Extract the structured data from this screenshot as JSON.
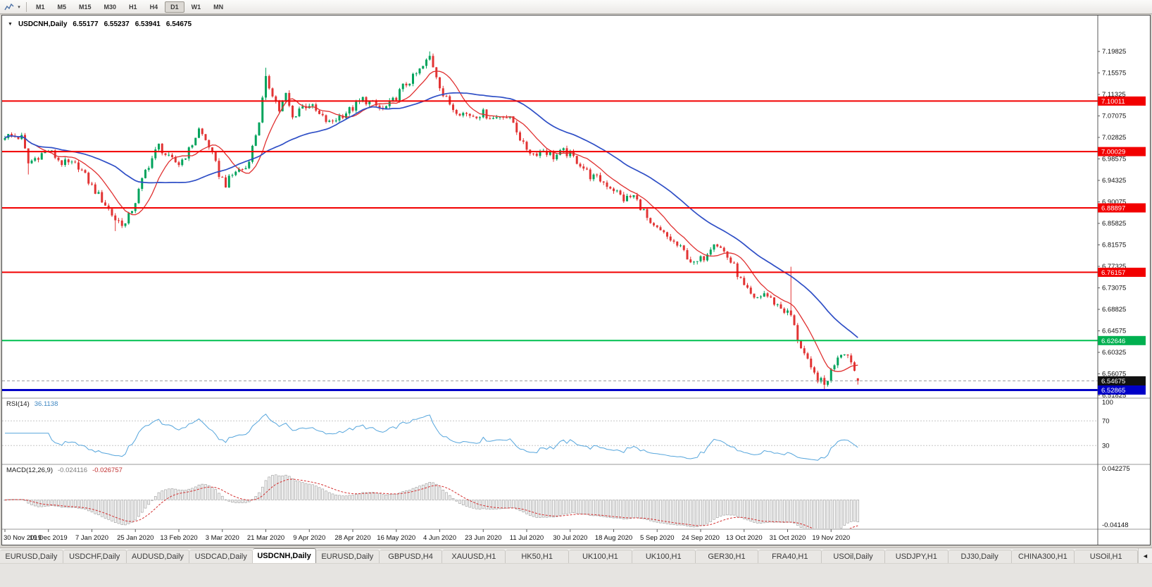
{
  "icons": {
    "collapse_triangle": "▼",
    "dropdown_caret": "▾",
    "tab_scroll_left": "◄"
  },
  "toolbar": {
    "timeframes": [
      {
        "label": "M1"
      },
      {
        "label": "M5"
      },
      {
        "label": "M15"
      },
      {
        "label": "M30"
      },
      {
        "label": "H1"
      },
      {
        "label": "H4"
      },
      {
        "label": "D1",
        "active": true
      },
      {
        "label": "W1"
      },
      {
        "label": "MN"
      }
    ]
  },
  "chart_header": {
    "symbol": "USDCNH,Daily",
    "open": "6.55177",
    "high": "6.55237",
    "low": "6.53941",
    "close": "6.54675"
  },
  "price_axis": {
    "labels": [
      "7.19825",
      "7.15575",
      "7.11325",
      "7.07075",
      "7.02825",
      "6.98575",
      "6.94325",
      "6.90075",
      "6.85825",
      "6.81575",
      "6.77325",
      "6.73075",
      "6.68825",
      "6.64575",
      "6.60325",
      "6.56075",
      "6.51825"
    ],
    "badges": [
      {
        "name": "resistance-1",
        "value": "7.10011",
        "price": 7.10011,
        "bg": "#f20000",
        "fg": "#ffffff"
      },
      {
        "name": "resistance-2",
        "value": "7.00029",
        "price": 7.00029,
        "bg": "#f20000",
        "fg": "#ffffff"
      },
      {
        "name": "resistance-3",
        "value": "6.88897",
        "price": 6.88897,
        "bg": "#f20000",
        "fg": "#ffffff"
      },
      {
        "name": "resistance-4",
        "value": "6.76157",
        "price": 6.76157,
        "bg": "#f20000",
        "fg": "#ffffff"
      },
      {
        "name": "support-green",
        "value": "6.62646",
        "price": 6.62646,
        "bg": "#00b050",
        "fg": "#ffffff"
      },
      {
        "name": "current-price",
        "value": "6.54675",
        "price": 6.54675,
        "bg": "#111111",
        "fg": "#ffffff"
      },
      {
        "name": "support-blue",
        "value": "6.52865",
        "price": 6.52865,
        "bg": "#0000c8",
        "fg": "#ffffff"
      }
    ]
  },
  "hlines": [
    {
      "price": 7.10011,
      "color": "#f20000",
      "width": 2
    },
    {
      "price": 7.00029,
      "color": "#f20000",
      "width": 2
    },
    {
      "price": 6.88897,
      "color": "#f20000",
      "width": 2
    },
    {
      "price": 6.76157,
      "color": "#f20000",
      "width": 2
    },
    {
      "price": 6.62646,
      "color": "#00c050",
      "width": 2
    },
    {
      "price": 6.52865,
      "color": "#0000c8",
      "width": 3
    }
  ],
  "current_price_line": {
    "price": 6.54675,
    "color": "#9a9aa0"
  },
  "time_axis": [
    "30 Nov 2019",
    "19 Dec 2019",
    "7 Jan 2020",
    "25 Jan 2020",
    "13 Feb 2020",
    "3 Mar 2020",
    "21 Mar 2020",
    "9 Apr 2020",
    "28 Apr 2020",
    "16 May 2020",
    "4 Jun 2020",
    "23 Jun 2020",
    "11 Jul 2020",
    "30 Jul 2020",
    "18 Aug 2020",
    "5 Sep 2020",
    "24 Sep 2020",
    "13 Oct 2020",
    "31 Oct 2020",
    "19 Nov 2020"
  ],
  "rsi_panel": {
    "label": "RSI(14)",
    "value": "36.1138",
    "levels": [
      "100",
      "70",
      "30"
    ],
    "line_color": "#55a5dc"
  },
  "macd_panel": {
    "label": "MACD(12,26,9)",
    "value_main": "-0.024116",
    "value_signal": "-0.026757",
    "axis_top": "0.042275",
    "axis_bottom": "-0.04148",
    "hist_fill": "#f2f2f2",
    "hist_stroke": "#9a9a9a",
    "signal_color": "#d43030"
  },
  "chart_data": {
    "type": "candlestick",
    "symbol": "USDCNH",
    "timeframe": "Daily",
    "count": 256,
    "price_range_visible": [
      6.51825,
      7.19825
    ],
    "last_candle": {
      "open": 6.55177,
      "high": 6.55237,
      "low": 6.53941,
      "close": 6.54675
    },
    "anchors_close": [
      [
        0,
        7.032
      ],
      [
        5,
        7.028
      ],
      [
        7,
        6.977
      ],
      [
        10,
        6.992
      ],
      [
        13,
        7.003
      ],
      [
        17,
        6.978
      ],
      [
        22,
        6.972
      ],
      [
        26,
        6.931
      ],
      [
        30,
        6.896
      ],
      [
        33,
        6.866
      ],
      [
        36,
        6.856
      ],
      [
        39,
        6.902
      ],
      [
        42,
        6.962
      ],
      [
        46,
        7.012
      ],
      [
        49,
        6.986
      ],
      [
        52,
        6.976
      ],
      [
        55,
        7.002
      ],
      [
        58,
        7.044
      ],
      [
        61,
        7.012
      ],
      [
        64,
        6.956
      ],
      [
        66,
        6.936
      ],
      [
        69,
        6.962
      ],
      [
        72,
        6.968
      ],
      [
        74,
        7.008
      ],
      [
        76,
        7.062
      ],
      [
        78,
        7.142
      ],
      [
        80,
        7.116
      ],
      [
        82,
        7.082
      ],
      [
        84,
        7.112
      ],
      [
        86,
        7.066
      ],
      [
        88,
        7.086
      ],
      [
        91,
        7.094
      ],
      [
        94,
        7.072
      ],
      [
        97,
        7.056
      ],
      [
        100,
        7.07
      ],
      [
        104,
        7.086
      ],
      [
        107,
        7.104
      ],
      [
        110,
        7.094
      ],
      [
        113,
        7.082
      ],
      [
        116,
        7.1
      ],
      [
        119,
        7.128
      ],
      [
        122,
        7.146
      ],
      [
        125,
        7.168
      ],
      [
        127,
        7.188
      ],
      [
        129,
        7.152
      ],
      [
        131,
        7.112
      ],
      [
        134,
        7.086
      ],
      [
        137,
        7.076
      ],
      [
        140,
        7.072
      ],
      [
        143,
        7.076
      ],
      [
        146,
        7.066
      ],
      [
        149,
        7.074
      ],
      [
        152,
        7.058
      ],
      [
        155,
        7.012
      ],
      [
        158,
        6.996
      ],
      [
        161,
        7.004
      ],
      [
        164,
        6.99
      ],
      [
        167,
        7.0
      ],
      [
        169,
        6.994
      ],
      [
        172,
        6.976
      ],
      [
        175,
        6.952
      ],
      [
        178,
        6.944
      ],
      [
        182,
        6.926
      ],
      [
        185,
        6.906
      ],
      [
        188,
        6.912
      ],
      [
        191,
        6.882
      ],
      [
        193,
        6.852
      ],
      [
        195,
        6.846
      ],
      [
        199,
        6.826
      ],
      [
        203,
        6.802
      ],
      [
        206,
        6.776
      ],
      [
        209,
        6.792
      ],
      [
        212,
        6.824
      ],
      [
        215,
        6.802
      ],
      [
        218,
        6.772
      ],
      [
        221,
        6.732
      ],
      [
        224,
        6.706
      ],
      [
        227,
        6.72
      ],
      [
        230,
        6.702
      ],
      [
        233,
        6.686
      ],
      [
        235,
        6.676
      ],
      [
        237,
        6.63
      ],
      [
        239,
        6.6
      ],
      [
        241,
        6.567
      ],
      [
        243,
        6.552
      ],
      [
        245,
        6.538
      ],
      [
        247,
        6.566
      ],
      [
        249,
        6.598
      ],
      [
        251,
        6.606
      ],
      [
        253,
        6.588
      ],
      [
        255,
        6.54675
      ]
    ],
    "wick_overrides": {
      "7": {
        "l": 6.955
      },
      "33": {
        "l": 6.843
      },
      "78": {
        "h": 7.166
      },
      "127": {
        "h": 7.1982
      },
      "235": {
        "h": 6.7725
      },
      "245": {
        "l": 6.527
      }
    },
    "noise": 0.016,
    "wick": 0.009,
    "up_color": "#00a35c",
    "down_color": "#e23434",
    "ma_fast": {
      "period": 10,
      "color": "#e03030"
    },
    "ma_slow": {
      "period": 34,
      "color": "#2f4fc6"
    },
    "indicators": {
      "rsi": {
        "period": 14,
        "last": 36.1138
      },
      "macd": {
        "fast": 12,
        "slow": 26,
        "signal": 9,
        "last_main": -0.024116,
        "last_signal": -0.026757
      }
    }
  },
  "tabs": {
    "items": [
      {
        "label": "EURUSD,Daily"
      },
      {
        "label": "USDCHF,Daily"
      },
      {
        "label": "AUDUSD,Daily"
      },
      {
        "label": "USDCAD,Daily"
      },
      {
        "label": "USDCNH,Daily",
        "active": true
      },
      {
        "label": "EURUSD,Daily"
      },
      {
        "label": "GBPUSD,H4"
      },
      {
        "label": "XAUUSD,H1"
      },
      {
        "label": "HK50,H1"
      },
      {
        "label": "UK100,H1"
      },
      {
        "label": "UK100,H1"
      },
      {
        "label": "GER30,H1"
      },
      {
        "label": "FRA40,H1"
      },
      {
        "label": "USOil,Daily"
      },
      {
        "label": "USDJPY,H1"
      },
      {
        "label": "DJ30,Daily"
      },
      {
        "label": "CHINA300,H1"
      },
      {
        "label": "USOil,H1"
      }
    ]
  }
}
